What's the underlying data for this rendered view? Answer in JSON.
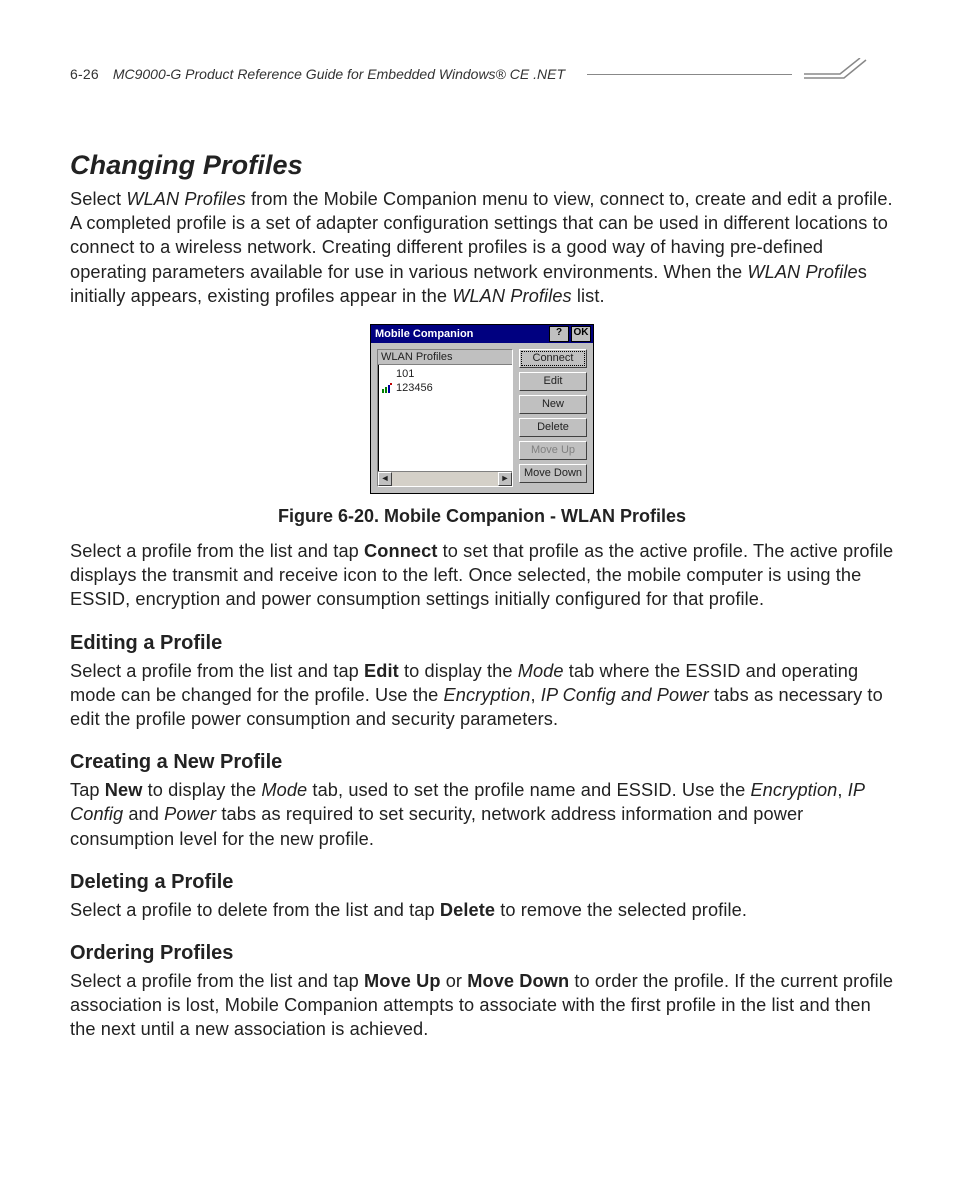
{
  "header": {
    "page_number": "6-26",
    "doc_title": "MC9000-G Product Reference Guide for Embedded Windows® CE .NET"
  },
  "section": {
    "title": "Changing Profiles",
    "intro_parts": [
      {
        "t": "Select "
      },
      {
        "t": "WLAN Profiles",
        "style": "ital"
      },
      {
        "t": " from the Mobile Companion menu to view, connect to, create and edit a profile. A completed profile is a set of adapter configuration settings that can be used in different locations to connect to a wireless network. Creating different profiles is a good way of having pre-defined operating parameters available for use in various network environments. When the "
      },
      {
        "t": "WLAN Profile",
        "style": "ital"
      },
      {
        "t": "s initially appears, existing profiles appear in the "
      },
      {
        "t": "WLAN Profiles",
        "style": "ital"
      },
      {
        "t": " list."
      }
    ]
  },
  "figure": {
    "caption": "Figure 6-20.  Mobile Companion - WLAN Profiles",
    "dialog": {
      "title": "Mobile Companion",
      "help_btn": "?",
      "ok_btn": "OK",
      "list_header": "WLAN Profiles",
      "items": [
        {
          "label": "101",
          "icon": false
        },
        {
          "label": "123456",
          "icon": true
        }
      ],
      "buttons": [
        {
          "label": "Connect",
          "state": "focus"
        },
        {
          "label": "Edit",
          "state": ""
        },
        {
          "label": "New",
          "state": ""
        },
        {
          "label": "Delete",
          "state": ""
        },
        {
          "label": "Move Up",
          "state": "disabled"
        },
        {
          "label": "Move Down",
          "state": ""
        }
      ]
    }
  },
  "after_figure_parts": [
    {
      "t": "Select a profile from the list and tap "
    },
    {
      "t": "Connect",
      "style": "bold"
    },
    {
      "t": " to set that profile as the active profile. The active profile displays the transmit and receive icon to the left. Once selected, the mobile computer is using the ESSID, encryption and power consumption settings initially configured for that profile."
    }
  ],
  "subs": [
    {
      "heading": "Editing a Profile",
      "parts": [
        {
          "t": "Select a profile from the list and tap "
        },
        {
          "t": "Edit",
          "style": "bold"
        },
        {
          "t": " to display the "
        },
        {
          "t": "Mode",
          "style": "ital"
        },
        {
          "t": " tab where the ESSID and operating mode can be changed for the profile. Use the "
        },
        {
          "t": "Encryption",
          "style": "ital"
        },
        {
          "t": ", "
        },
        {
          "t": "IP Config and Power",
          "style": "ital"
        },
        {
          "t": " tabs as necessary to edit the profile power consumption and security parameters."
        }
      ]
    },
    {
      "heading": "Creating a New Profile",
      "parts": [
        {
          "t": "Tap "
        },
        {
          "t": "New",
          "style": "bold"
        },
        {
          "t": " to display the "
        },
        {
          "t": "Mode",
          "style": "ital"
        },
        {
          "t": " tab, used to set the profile name and ESSID. Use the "
        },
        {
          "t": "Encryption",
          "style": "ital"
        },
        {
          "t": ", "
        },
        {
          "t": "IP Config",
          "style": "ital"
        },
        {
          "t": " and "
        },
        {
          "t": "Power",
          "style": "ital"
        },
        {
          "t": " tabs as required to set security, network address information and power consumption level for the new profile."
        }
      ]
    },
    {
      "heading": "Deleting a Profile",
      "parts": [
        {
          "t": "Select a profile to delete from the list and tap "
        },
        {
          "t": "Delete",
          "style": "bold"
        },
        {
          "t": " to remove the selected profile."
        }
      ]
    },
    {
      "heading": "Ordering Profiles",
      "parts": [
        {
          "t": "Select a profile from the list and tap "
        },
        {
          "t": "Move Up",
          "style": "bold"
        },
        {
          "t": " or "
        },
        {
          "t": "Move Down",
          "style": "bold"
        },
        {
          "t": " to order the profile. If the current profile association is lost, Mobile Companion attempts to associate with the first profile in the list and then the next until a new association is achieved."
        }
      ]
    }
  ]
}
